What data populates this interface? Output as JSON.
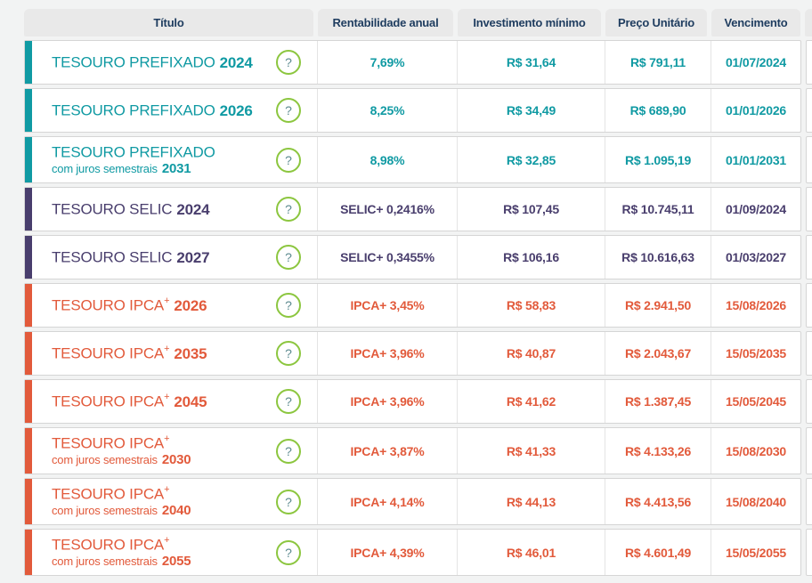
{
  "header": {
    "columns": [
      "Título",
      "Rentabilidade anual",
      "Investimento mínimo",
      "Preço Unitário",
      "Vencimento"
    ]
  },
  "icons": {
    "help": "?"
  },
  "colors": {
    "prefixado_teal": "#109aa3",
    "selic_purple": "#493e6d",
    "ipca_orange": "#e25a3b",
    "help_green": "#8cc63f",
    "header_text": "#1e3c5f",
    "header_bg": "#e9e9e9",
    "page_bg": "#f2f3f3",
    "card_border": "#d5d5d5"
  },
  "rows": [
    {
      "color": "#109aa3",
      "name": "TESOURO PREFIXADO",
      "sup": "",
      "year1": "2024",
      "subtitle": "",
      "year2": "",
      "rate_bold": "7,69%",
      "rate_rest": "",
      "min": "R$ 31,64",
      "price": "R$ 791,11",
      "due": "01/07/2024"
    },
    {
      "color": "#109aa3",
      "name": "TESOURO PREFIXADO",
      "sup": "",
      "year1": "2026",
      "subtitle": "",
      "year2": "",
      "rate_bold": "8,25%",
      "rate_rest": "",
      "min": "R$ 34,49",
      "price": "R$ 689,90",
      "due": "01/01/2026"
    },
    {
      "color": "#109aa3",
      "name": "TESOURO PREFIXADO",
      "sup": "",
      "year1": "",
      "subtitle": "com juros semestrais",
      "year2": "2031",
      "rate_bold": "8,98%",
      "rate_rest": "",
      "min": "R$ 32,85",
      "price": "R$ 1.095,19",
      "due": "01/01/2031"
    },
    {
      "color": "#493e6d",
      "name": "TESOURO SELIC",
      "sup": "",
      "year1": "2024",
      "subtitle": "",
      "year2": "",
      "rate_bold": "SELIC",
      "rate_rest": " + 0,2416%",
      "min": "R$ 107,45",
      "price": "R$ 10.745,11",
      "due": "01/09/2024"
    },
    {
      "color": "#493e6d",
      "name": "TESOURO SELIC",
      "sup": "",
      "year1": "2027",
      "subtitle": "",
      "year2": "",
      "rate_bold": "SELIC",
      "rate_rest": " + 0,3455%",
      "min": "R$ 106,16",
      "price": "R$ 10.616,63",
      "due": "01/03/2027"
    },
    {
      "color": "#e25a3b",
      "name": "TESOURO IPCA",
      "sup": "+",
      "year1": "2026",
      "subtitle": "",
      "year2": "",
      "rate_bold": "IPCA",
      "rate_rest": " + 3,45%",
      "min": "R$ 58,83",
      "price": "R$ 2.941,50",
      "due": "15/08/2026"
    },
    {
      "color": "#e25a3b",
      "name": "TESOURO IPCA",
      "sup": "+",
      "year1": "2035",
      "subtitle": "",
      "year2": "",
      "rate_bold": "IPCA",
      "rate_rest": " + 3,96%",
      "min": "R$ 40,87",
      "price": "R$ 2.043,67",
      "due": "15/05/2035"
    },
    {
      "color": "#e25a3b",
      "name": "TESOURO IPCA",
      "sup": "+",
      "year1": "2045",
      "subtitle": "",
      "year2": "",
      "rate_bold": "IPCA",
      "rate_rest": " + 3,96%",
      "min": "R$ 41,62",
      "price": "R$ 1.387,45",
      "due": "15/05/2045"
    },
    {
      "color": "#e25a3b",
      "name": "TESOURO IPCA",
      "sup": "+",
      "year1": "",
      "subtitle": "com juros semestrais",
      "year2": "2030",
      "rate_bold": "IPCA",
      "rate_rest": " + 3,87%",
      "min": "R$ 41,33",
      "price": "R$ 4.133,26",
      "due": "15/08/2030"
    },
    {
      "color": "#e25a3b",
      "name": "TESOURO IPCA",
      "sup": "+",
      "year1": "",
      "subtitle": "com juros semestrais",
      "year2": "2040",
      "rate_bold": "IPCA",
      "rate_rest": " + 4,14%",
      "min": "R$ 44,13",
      "price": "R$ 4.413,56",
      "due": "15/08/2040"
    },
    {
      "color": "#e25a3b",
      "name": "TESOURO IPCA",
      "sup": "+",
      "year1": "",
      "subtitle": "com juros semestrais",
      "year2": "2055",
      "rate_bold": "IPCA",
      "rate_rest": " + 4,39%",
      "min": "R$ 46,01",
      "price": "R$ 4.601,49",
      "due": "15/05/2055"
    }
  ]
}
